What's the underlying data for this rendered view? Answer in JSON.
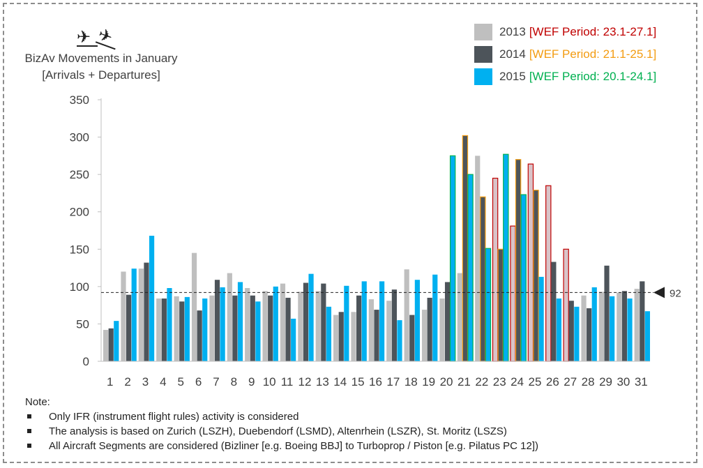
{
  "icons": [
    "airplane-departure-icon",
    "airplane-arrival-icon"
  ],
  "title_line1": "BizAv Movements in January",
  "title_line2": "[Arrivals + Departures]",
  "legend": [
    {
      "year": "2013",
      "period": "[WEF Period: 23.1-27.1]",
      "color": "#bfbfbf",
      "period_color": "#c00000"
    },
    {
      "year": "2014",
      "period": "[WEF Period: 21.1-25.1]",
      "color": "#4d545a",
      "period_color": "#f39c12"
    },
    {
      "year": "2015",
      "period": "[WEF Period: 20.1-24.1]",
      "color": "#00b0f0",
      "period_color": "#00b050"
    }
  ],
  "reference_label": "92",
  "notes": {
    "heading": "Note:",
    "items": [
      "Only IFR (instrument flight rules) activity is considered",
      "The analysis is based on Zurich (LSZH), Duebendorf (LSMD), Altenrhein (LSZR), St. Moritz (LSZS)",
      "All Aircraft Segments are considered (Bizliner [e.g. Boeing BBJ] to Turboprop / Piston [e.g. Pilatus PC 12])"
    ]
  },
  "chart_data": {
    "type": "bar",
    "title": "BizAv Movements in January",
    "subtitle": "[Arrivals + Departures]",
    "xlabel": "",
    "ylabel": "",
    "ylim": [
      0,
      350
    ],
    "yticks": [
      0,
      50,
      100,
      150,
      200,
      250,
      300,
      350
    ],
    "grid": false,
    "legend_position": "top-right",
    "reference_line": 92,
    "categories": [
      "1",
      "2",
      "3",
      "4",
      "5",
      "6",
      "7",
      "8",
      "9",
      "10",
      "11",
      "12",
      "13",
      "14",
      "15",
      "16",
      "17",
      "18",
      "19",
      "20",
      "21",
      "22",
      "23",
      "24",
      "25",
      "26",
      "27",
      "28",
      "29",
      "30",
      "31"
    ],
    "series": [
      {
        "name": "2013",
        "color": "#bfbfbf",
        "values": [
          42,
          120,
          124,
          84,
          87,
          145,
          88,
          118,
          98,
          94,
          104,
          93,
          94,
          62,
          66,
          83,
          81,
          123,
          69,
          84,
          118,
          275,
          245,
          181,
          264,
          235,
          150,
          88,
          93,
          92,
          97
        ],
        "wef_days": [
          "23",
          "24",
          "25",
          "26",
          "27"
        ],
        "wef_outline": "#c00000",
        "wef_fill": "#d9c3c8"
      },
      {
        "name": "2014",
        "color": "#4d545a",
        "values": [
          44,
          89,
          132,
          84,
          80,
          68,
          109,
          88,
          88,
          88,
          85,
          105,
          104,
          66,
          88,
          69,
          96,
          62,
          85,
          106,
          302,
          220,
          150,
          270,
          229,
          133,
          81,
          71,
          128,
          94,
          107
        ],
        "wef_days": [
          "21",
          "22",
          "23",
          "24",
          "25"
        ],
        "wef_outline": "#f39c12"
      },
      {
        "name": "2015",
        "color": "#00b0f0",
        "values": [
          54,
          124,
          168,
          98,
          86,
          84,
          99,
          106,
          80,
          100,
          57,
          117,
          73,
          101,
          107,
          107,
          55,
          109,
          116,
          275,
          250,
          151,
          277,
          223,
          113,
          84,
          73,
          99,
          87,
          84,
          67
        ],
        "wef_days": [
          "20",
          "21",
          "22",
          "23",
          "24"
        ],
        "wef_outline": "#00b050"
      }
    ]
  }
}
